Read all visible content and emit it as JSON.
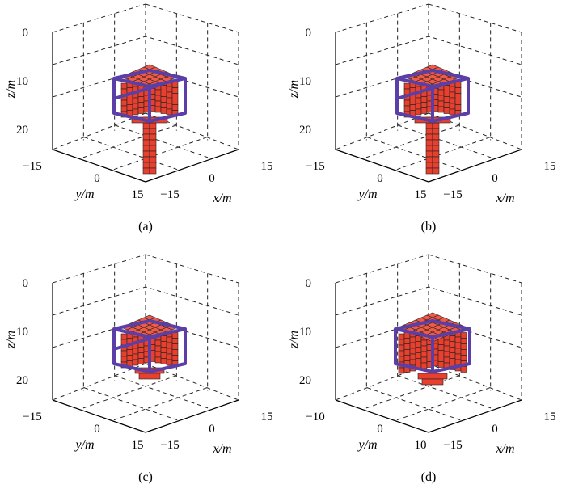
{
  "panels": [
    {
      "id": "a",
      "caption": "(a)",
      "z_label": "z/m",
      "y_label": "y/m",
      "x_label": "x/m",
      "z_ticks": [
        "0",
        "10",
        "20"
      ],
      "y_ticks": [
        "−15",
        "0",
        "15"
      ],
      "x_ticks": [
        "−15",
        "0",
        "15"
      ]
    },
    {
      "id": "b",
      "caption": "(b)",
      "z_label": "z/m",
      "y_label": "y/m",
      "x_label": "x/m",
      "z_ticks": [
        "0",
        "10",
        "20"
      ],
      "y_ticks": [
        "−15",
        "0",
        "15"
      ],
      "x_ticks": [
        "−15",
        "0",
        "15"
      ]
    },
    {
      "id": "c",
      "caption": "(c)",
      "z_label": "z/m",
      "y_label": "y/m",
      "x_label": "x/m",
      "z_ticks": [
        "0",
        "10",
        "20"
      ],
      "y_ticks": [
        "−15",
        "0",
        "15"
      ],
      "x_ticks": [
        "−15",
        "0",
        "15"
      ]
    },
    {
      "id": "d",
      "caption": "(d)",
      "z_label": "z/m",
      "y_label": "y/m",
      "x_label": "x/m",
      "z_ticks": [
        "0",
        "10",
        "20"
      ],
      "y_ticks": [
        "−10",
        "0",
        "10"
      ],
      "x_ticks": [
        "−15",
        "0",
        "15"
      ]
    }
  ],
  "colors": {
    "block_fill": "#e8402f",
    "frame_stroke": "#5b3fa8"
  }
}
